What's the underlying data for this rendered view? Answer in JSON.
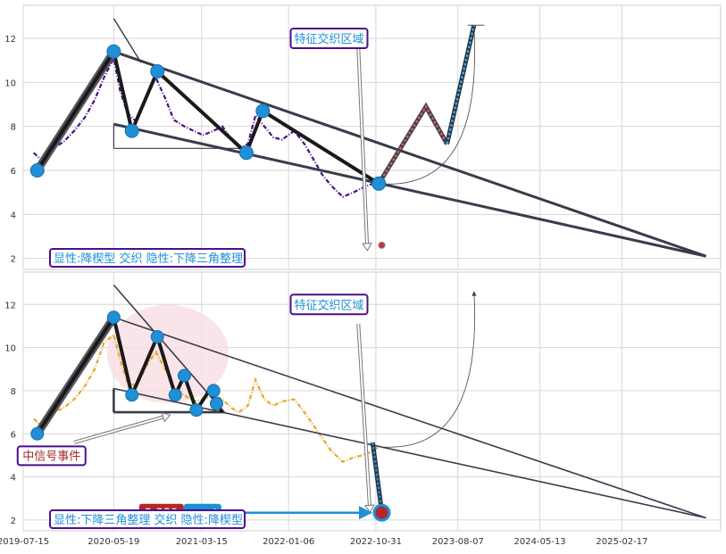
{
  "chart_data": [
    {
      "type": "line",
      "title": "",
      "xlabel": "",
      "ylabel": "",
      "ylim": [
        1.5,
        13.5
      ],
      "xlim": [
        "2019-07-15",
        "2026-01-20"
      ],
      "yticks": [
        2,
        4,
        6,
        8,
        10,
        12
      ],
      "grid": true,
      "colors": {
        "price": "#4b0f8c",
        "thick": "#1a1a1a",
        "line": "#3a3b4a",
        "marker": "#1f8fd6",
        "up_leg": "#d0645a",
        "dash_leg": "#39a8dd"
      },
      "series": [
        {
          "values": [
            [
              "2019-08-20",
              6.8
            ],
            [
              "2019-09-20",
              6.4
            ],
            [
              "2019-10-25",
              7.0
            ],
            [
              "2019-11-30",
              7.3
            ],
            [
              "2020-01-05",
              7.8
            ],
            [
              "2020-02-10",
              8.4
            ],
            [
              "2020-03-15",
              9.2
            ],
            [
              "2020-04-15",
              10.2
            ],
            [
              "2020-05-19",
              11.1
            ],
            [
              "2020-06-10",
              9.6
            ],
            [
              "2020-07-05",
              8.6
            ],
            [
              "2020-08-05",
              8.2
            ],
            [
              "2020-09-10",
              9.5
            ],
            [
              "2020-10-10",
              10.2
            ],
            [
              "2020-11-10",
              9.3
            ],
            [
              "2020-12-10",
              8.3
            ],
            [
              "2021-01-15",
              8.0
            ],
            [
              "2021-02-15",
              7.8
            ],
            [
              "2021-03-20",
              7.6
            ],
            [
              "2021-04-25",
              7.8
            ],
            [
              "2021-05-25",
              8.0
            ],
            [
              "2021-06-25",
              7.4
            ],
            [
              "2021-07-20",
              7.0
            ],
            [
              "2021-08-20",
              7.2
            ],
            [
              "2021-09-15",
              8.5
            ],
            [
              "2021-10-15",
              8.0
            ],
            [
              "2021-11-15",
              7.5
            ],
            [
              "2021-12-15",
              7.4
            ],
            [
              "2022-01-25",
              7.8
            ],
            [
              "2022-03-01",
              7.2
            ],
            [
              "2022-04-01",
              6.5
            ],
            [
              "2022-05-01",
              5.8
            ],
            [
              "2022-06-01",
              5.3
            ],
            [
              "2022-07-10",
              4.8
            ],
            [
              "2022-08-15",
              5.0
            ],
            [
              "2022-09-15",
              5.2
            ],
            [
              "2022-10-20",
              5.4
            ],
            [
              "2022-11-10",
              5.6
            ]
          ]
        }
      ],
      "pattern_points": [
        [
          "2019-09-01",
          6.0
        ],
        [
          "2020-05-19",
          11.4
        ],
        [
          "2020-07-20",
          7.8
        ],
        [
          "2020-10-15",
          10.5
        ],
        [
          "2021-08-15",
          6.8
        ],
        [
          "2021-10-10",
          8.7
        ],
        [
          "2022-11-10",
          5.4
        ]
      ],
      "trend_lines": [
        [
          [
            "2020-05-19",
            11.4
          ],
          [
            "2025-12-01",
            2.1
          ]
        ],
        [
          [
            "2020-05-19",
            8.1
          ],
          [
            "2025-12-01",
            2.1
          ]
        ]
      ],
      "upper_guide": [
        [
          "2020-05-19",
          12.9
        ],
        [
          "2020-08-20",
          10.9
        ]
      ],
      "bracket_lines": [
        [
          [
            "2020-05-19",
            8.1
          ],
          [
            "2020-05-19",
            7.0
          ]
        ],
        [
          [
            "2020-05-19",
            7.0
          ],
          [
            "2021-08-15",
            7.0
          ]
        ]
      ],
      "projection": {
        "up_leg": [
          [
            "2022-11-10",
            5.4
          ],
          [
            "2023-04-20",
            8.9
          ],
          [
            "2023-07-01",
            7.2
          ]
        ],
        "dash_leg": [
          [
            "2023-07-01",
            7.2
          ],
          [
            "2023-10-01",
            12.6
          ]
        ],
        "bracket": [
          [
            "2023-09-10",
            12.6
          ],
          [
            "2023-11-05",
            12.6
          ]
        ]
      },
      "arrow_into_area": [
        [
          "2022-09-01",
          11.6
        ],
        [
          "2022-10-01",
          2.6
        ]
      ],
      "target_dot": [
        "2022-11-20",
        2.6
      ],
      "curve_arc": [
        [
          "2022-11-10",
          5.4
        ],
        [
          "2023-10-01",
          12.5
        ]
      ],
      "annotation_box": {
        "text": "特征交织区域",
        "at": [
          "2022-05-15",
          12.0
        ]
      },
      "legend_text": "显性:降楔型 交织 隐性:下降三角整理"
    },
    {
      "type": "line",
      "title": "",
      "xlabel": "",
      "ylabel": "",
      "ylim": [
        1.5,
        13.5
      ],
      "xlim": [
        "2019-07-15",
        "2026-01-20"
      ],
      "xticks": [
        "2019-07-15",
        "2020-05-19",
        "2021-03-15",
        "2022-01-06",
        "2022-10-31",
        "2023-08-07",
        "2024-05-13",
        "2025-02-17"
      ],
      "yticks": [
        2,
        4,
        6,
        8,
        10,
        12
      ],
      "grid": true,
      "colors": {
        "price": "#e8a92a",
        "thick": "#1a1a1a",
        "line": "#3a3b4a",
        "marker": "#1f8fd6",
        "target_red": "#b52628",
        "badge_blue": "#1f8fd6",
        "shade": "#f7dfe3"
      },
      "series": [
        {
          "values": [
            [
              "2019-08-20",
              6.7
            ],
            [
              "2019-09-20",
              6.3
            ],
            [
              "2019-10-25",
              7.0
            ],
            [
              "2019-11-30",
              7.2
            ],
            [
              "2020-01-05",
              7.6
            ],
            [
              "2020-02-10",
              8.2
            ],
            [
              "2020-03-15",
              9.0
            ],
            [
              "2020-04-15",
              10.2
            ],
            [
              "2020-05-19",
              10.6
            ],
            [
              "2020-06-10",
              9.4
            ],
            [
              "2020-07-05",
              8.4
            ],
            [
              "2020-08-05",
              8.2
            ],
            [
              "2020-09-10",
              9.2
            ],
            [
              "2020-10-10",
              9.8
            ],
            [
              "2020-11-10",
              9.0
            ],
            [
              "2020-12-10",
              8.2
            ],
            [
              "2021-01-15",
              7.8
            ],
            [
              "2021-02-15",
              7.5
            ],
            [
              "2021-03-20",
              7.6
            ],
            [
              "2021-04-25",
              7.8
            ],
            [
              "2021-05-25",
              7.6
            ],
            [
              "2021-06-25",
              7.2
            ],
            [
              "2021-07-20",
              7.0
            ],
            [
              "2021-08-20",
              7.3
            ],
            [
              "2021-09-15",
              8.5
            ],
            [
              "2021-10-15",
              7.6
            ],
            [
              "2021-11-15",
              7.3
            ],
            [
              "2021-12-15",
              7.5
            ],
            [
              "2022-01-25",
              7.6
            ],
            [
              "2022-03-01",
              7.0
            ],
            [
              "2022-04-01",
              6.4
            ],
            [
              "2022-05-01",
              5.8
            ],
            [
              "2022-06-01",
              5.2
            ],
            [
              "2022-07-10",
              4.7
            ],
            [
              "2022-08-15",
              4.9
            ],
            [
              "2022-09-15",
              5.0
            ],
            [
              "2022-10-20",
              5.2
            ],
            [
              "2022-11-10",
              5.4
            ]
          ]
        }
      ],
      "pattern_points": [
        [
          "2019-09-01",
          6.0
        ],
        [
          "2020-05-19",
          11.4
        ],
        [
          "2020-07-20",
          7.8
        ],
        [
          "2020-10-15",
          10.5
        ],
        [
          "2020-12-15",
          7.8
        ],
        [
          "2021-01-15",
          8.7
        ],
        [
          "2021-02-25",
          7.1
        ],
        [
          "2021-04-25",
          8.0
        ],
        [
          "2021-05-05",
          7.4
        ]
      ],
      "pattern_path": [
        [
          "2019-09-01",
          6.0
        ],
        [
          "2020-05-19",
          11.4
        ],
        [
          "2020-07-20",
          7.8
        ],
        [
          "2020-10-15",
          10.5
        ],
        [
          "2020-12-15",
          7.8
        ],
        [
          "2021-01-15",
          8.7
        ],
        [
          "2021-02-25",
          7.1
        ],
        [
          "2021-04-10",
          8.0
        ],
        [
          "2021-05-05",
          7.4
        ],
        [
          "2021-05-25",
          7.0
        ]
      ],
      "trend_lines": [
        [
          [
            "2020-05-19",
            11.4
          ],
          [
            "2025-12-01",
            2.1
          ]
        ],
        [
          [
            "2020-05-19",
            8.1
          ],
          [
            "2025-12-01",
            2.1
          ]
        ],
        [
          [
            "2020-05-19",
            12.9
          ],
          [
            "2021-06-01",
            7.0
          ]
        ]
      ],
      "bracket_lines": [
        [
          [
            "2020-05-19",
            8.1
          ],
          [
            "2020-05-19",
            7.0
          ]
        ],
        [
          [
            "2020-05-19",
            7.0
          ],
          [
            "2021-06-01",
            7.0
          ]
        ]
      ],
      "dash_leg": [
        [
          "2022-10-20",
          5.6
        ],
        [
          "2022-11-20",
          2.4
        ]
      ],
      "hollow_arrows": [
        [
          [
            "2020-01-05",
            5.6
          ],
          [
            "2020-11-10",
            6.8
          ]
        ],
        [
          [
            "2022-09-01",
            11.1
          ],
          [
            "2022-10-10",
            2.6
          ]
        ]
      ],
      "curve_arc": [
        [
          "2022-11-10",
          5.4
        ],
        [
          "2023-10-01",
          12.6
        ]
      ],
      "target_point": [
        "2022-11-20",
        2.339
      ],
      "target_badge": {
        "value": "2.339",
        "label": "arget",
        "at": [
          "2020-09-01",
          2.339
        ]
      },
      "annotation_box": {
        "text": "特征交织区域",
        "at": [
          "2022-05-15",
          12.0
        ]
      },
      "event_box": {
        "text": "中信号事件",
        "at": [
          "2019-11-01",
          5.0
        ]
      },
      "shade_center": [
        "2020-11-20",
        9.7
      ],
      "legend_text": "显性:下降三角整理 交织 隐性:降楔型"
    }
  ]
}
